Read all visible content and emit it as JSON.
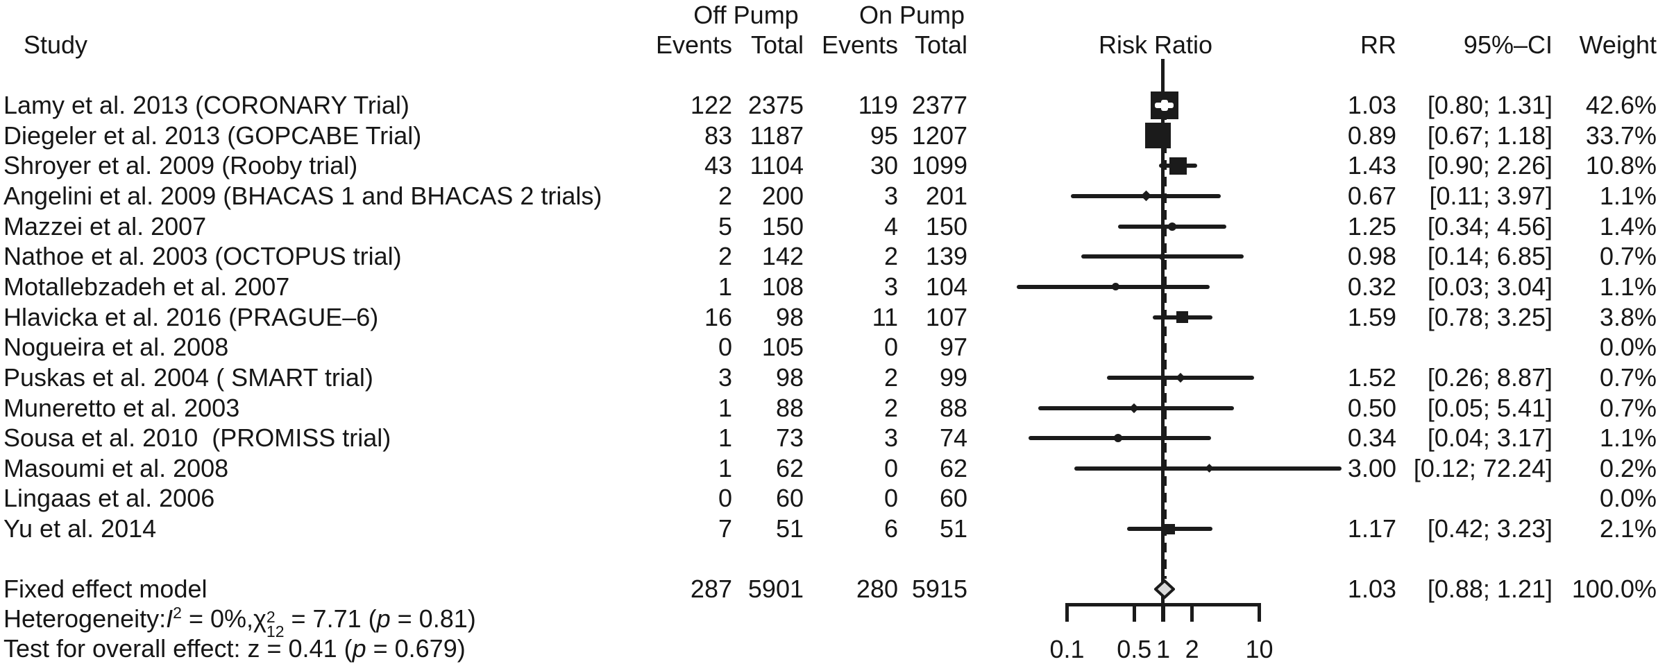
{
  "header": {
    "study": "Study",
    "off_pump": "Off Pump",
    "on_pump": "On Pump",
    "events": "Events",
    "total": "Total",
    "risk_ratio": "Risk Ratio",
    "rr": "RR",
    "ci": "95%–CI",
    "weight": "Weight"
  },
  "chart_data": {
    "type": "scatter",
    "variant": "forest-plot-meta-analysis",
    "x_scale": "log",
    "x_ticks": [
      0.1,
      0.5,
      1,
      2,
      10
    ],
    "x_tick_labels": [
      "0.1",
      "0.5",
      "1",
      "2",
      "10"
    ],
    "x_range": [
      0.1,
      10
    ],
    "null_line": 1,
    "pooled_line": 1.03,
    "effect_measure": "Risk Ratio",
    "rows": [
      {
        "study": "Lamy et al. 2013 (CORONARY Trial)",
        "off_events": "122",
        "off_total": "2375",
        "on_events": "119",
        "on_total": "2377",
        "rr": 1.03,
        "ci_low": 0.8,
        "ci_high": 1.31,
        "weight_pct": 42.6,
        "rr_text": "1.03",
        "ci_text": "[0.80; 1.31]",
        "weight_text": "42.6%",
        "marker": 40,
        "shape": "square",
        "inner_ci": true
      },
      {
        "study": "Diegeler et al. 2013 (GOPCABE Trial)",
        "off_events": "83",
        "off_total": "1187",
        "on_events": "95",
        "on_total": "1207",
        "rr": 0.89,
        "ci_low": 0.67,
        "ci_high": 1.18,
        "weight_pct": 33.7,
        "rr_text": "0.89",
        "ci_text": "[0.67; 1.18]",
        "weight_text": "33.7%",
        "marker": 37,
        "shape": "square",
        "inner_ci": false
      },
      {
        "study": "Shroyer et al. 2009 (Rooby trial)",
        "off_events": "43",
        "off_total": "1104",
        "on_events": "30",
        "on_total": "1099",
        "rr": 1.43,
        "ci_low": 0.9,
        "ci_high": 2.26,
        "weight_pct": 10.8,
        "rr_text": "1.43",
        "ci_text": "[0.90; 2.26]",
        "weight_text": "10.8%",
        "marker": 25,
        "shape": "square",
        "inner_ci": false
      },
      {
        "study": "Angelini et al. 2009 (BHACAS 1 and BHACAS 2 trials)",
        "off_events": "2",
        "off_total": "200",
        "on_events": "3",
        "on_total": "201",
        "rr": 0.67,
        "ci_low": 0.11,
        "ci_high": 3.97,
        "weight_pct": 1.1,
        "rr_text": "0.67",
        "ci_text": "[0.11; 3.97]",
        "weight_text": "1.1%",
        "marker": 11,
        "shape": "diamond",
        "inner_ci": false
      },
      {
        "study": "Mazzei et al. 2007",
        "off_events": "5",
        "off_total": "150",
        "on_events": "4",
        "on_total": "150",
        "rr": 1.25,
        "ci_low": 0.34,
        "ci_high": 4.56,
        "weight_pct": 1.4,
        "rr_text": "1.25",
        "ci_text": "[0.34; 4.56]",
        "weight_text": "1.4%",
        "marker": 12,
        "shape": "circle",
        "inner_ci": false
      },
      {
        "study": "Nathoe et al. 2003 (OCTOPUS trial)",
        "off_events": "2",
        "off_total": "142",
        "on_events": "2",
        "on_total": "139",
        "rr": 0.98,
        "ci_low": 0.14,
        "ci_high": 6.85,
        "weight_pct": 0.7,
        "rr_text": "0.98",
        "ci_text": "[0.14; 6.85]",
        "weight_text": "0.7%",
        "marker": 9,
        "shape": "circle",
        "inner_ci": false
      },
      {
        "study": "Motallebzadeh et al. 2007",
        "off_events": "1",
        "off_total": "108",
        "on_events": "3",
        "on_total": "104",
        "rr": 0.32,
        "ci_low": 0.03,
        "ci_high": 3.04,
        "weight_pct": 1.1,
        "rr_text": "0.32",
        "ci_text": "[0.03; 3.04]",
        "weight_text": "1.1%",
        "marker": 11,
        "shape": "circle",
        "inner_ci": false
      },
      {
        "study": "Hlavicka et al. 2016 (PRAGUE–6)",
        "off_events": "16",
        "off_total": "98",
        "on_events": "11",
        "on_total": "107",
        "rr": 1.59,
        "ci_low": 0.78,
        "ci_high": 3.25,
        "weight_pct": 3.8,
        "rr_text": "1.59",
        "ci_text": "[0.78; 3.25]",
        "weight_text": "3.8%",
        "marker": 17,
        "shape": "square",
        "inner_ci": false
      },
      {
        "study": "Nogueira et al. 2008",
        "off_events": "0",
        "off_total": "105",
        "on_events": "0",
        "on_total": "97",
        "rr": null,
        "ci_low": null,
        "ci_high": null,
        "weight_pct": 0.0,
        "rr_text": "",
        "ci_text": "",
        "weight_text": "0.0%",
        "marker": 0,
        "shape": "none",
        "inner_ci": false
      },
      {
        "study": "Puskas et al. 2004 ( SMART trial)",
        "off_events": "3",
        "off_total": "98",
        "on_events": "2",
        "on_total": "99",
        "rr": 1.52,
        "ci_low": 0.26,
        "ci_high": 8.87,
        "weight_pct": 0.7,
        "rr_text": "1.52",
        "ci_text": "[0.26; 8.87]",
        "weight_text": "0.7%",
        "marker": 10,
        "shape": "diamond",
        "inner_ci": false
      },
      {
        "study": "Muneretto et al. 2003",
        "off_events": "1",
        "off_total": "88",
        "on_events": "2",
        "on_total": "88",
        "rr": 0.5,
        "ci_low": 0.05,
        "ci_high": 5.41,
        "weight_pct": 0.7,
        "rr_text": "0.50",
        "ci_text": "[0.05; 5.41]",
        "weight_text": "0.7%",
        "marker": 10,
        "shape": "diamond",
        "inner_ci": false
      },
      {
        "study": "Sousa et al. 2010  (PROMISS trial)",
        "off_events": "1",
        "off_total": "73",
        "on_events": "3",
        "on_total": "74",
        "rr": 0.34,
        "ci_low": 0.04,
        "ci_high": 3.17,
        "weight_pct": 1.1,
        "rr_text": "0.34",
        "ci_text": "[0.04; 3.17]",
        "weight_text": "1.1%",
        "marker": 12,
        "shape": "circle",
        "inner_ci": false
      },
      {
        "study": "Masoumi et al. 2008",
        "off_events": "1",
        "off_total": "62",
        "on_events": "0",
        "on_total": "62",
        "rr": 3.0,
        "ci_low": 0.12,
        "ci_high": 72.24,
        "weight_pct": 0.2,
        "rr_text": "3.00",
        "ci_text": "[0.12; 72.24]",
        "weight_text": "0.2%",
        "marker": 9,
        "shape": "diamond",
        "inner_ci": false
      },
      {
        "study": "Lingaas et al. 2006",
        "off_events": "0",
        "off_total": "60",
        "on_events": "0",
        "on_total": "60",
        "rr": null,
        "ci_low": null,
        "ci_high": null,
        "weight_pct": 0.0,
        "rr_text": "",
        "ci_text": "",
        "weight_text": "0.0%",
        "marker": 0,
        "shape": "none",
        "inner_ci": false
      },
      {
        "study": "Yu et al. 2014",
        "off_events": "7",
        "off_total": "51",
        "on_events": "6",
        "on_total": "51",
        "rr": 1.17,
        "ci_low": 0.42,
        "ci_high": 3.23,
        "weight_pct": 2.1,
        "rr_text": "1.17",
        "ci_text": "[0.42; 3.23]",
        "weight_text": "2.1%",
        "marker": 15,
        "shape": "square",
        "inner_ci": false
      }
    ],
    "summary": {
      "label": "Fixed effect model",
      "off_events": "287",
      "off_total": "5901",
      "on_events": "280",
      "on_total": "5915",
      "rr": 1.03,
      "ci_low": 0.88,
      "ci_high": 1.21,
      "weight_pct": 100.0,
      "rr_text": "1.03",
      "ci_text": "[0.88; 1.21]",
      "weight_text": "100.0%"
    }
  },
  "footnotes": {
    "heterogeneity": [
      {
        "t": "txt",
        "v": "Heterogeneity:"
      },
      {
        "t": "i",
        "v": "I"
      },
      {
        "t": "sup",
        "v": "2"
      },
      {
        "t": "txt",
        "v": " = 0%,"
      },
      {
        "t": "txt",
        "v": "χ"
      },
      {
        "t": "sup",
        "v": "2"
      },
      {
        "t": "sub",
        "v": "12"
      },
      {
        "t": "txt",
        "v": " = 7.71 ("
      },
      {
        "t": "i",
        "v": "p"
      },
      {
        "t": "txt",
        "v": " = 0.81)"
      }
    ],
    "overall_effect": [
      {
        "t": "txt",
        "v": "Test for overall effect: z = 0.41 ("
      },
      {
        "t": "i",
        "v": "p"
      },
      {
        "t": "txt",
        "v": " = 0.679)"
      }
    ]
  },
  "colors": {
    "text": "#161616",
    "line": "#1b1b1b",
    "diamond_fill": "#d9d9d9",
    "background": "#ffffff"
  }
}
